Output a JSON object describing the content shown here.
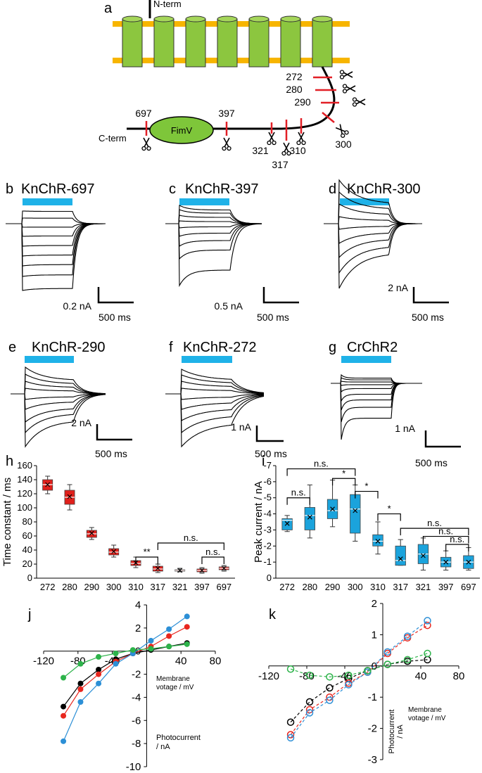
{
  "panel_labels": [
    "a",
    "b",
    "c",
    "d",
    "e",
    "f",
    "g",
    "h",
    "i",
    "j",
    "k"
  ],
  "diagram": {
    "n_term": "N-term",
    "c_term": "C-term",
    "domain": "FimV",
    "sites": [
      "272",
      "280",
      "290",
      "300",
      "310",
      "317",
      "321",
      "397",
      "697"
    ]
  },
  "traces": [
    {
      "title": "KnChR-697",
      "current_scale": "0.2 nA",
      "time_scale": "500 ms"
    },
    {
      "title": "KnChR-397",
      "current_scale": "0.5 nA",
      "time_scale": "500 ms"
    },
    {
      "title": "KnChR-300",
      "current_scale": "2 nA",
      "time_scale": "500 ms"
    },
    {
      "title": "KnChR-290",
      "current_scale": "2 nA",
      "time_scale": "500 ms"
    },
    {
      "title": "KnChR-272",
      "current_scale": "1 nA",
      "time_scale": "500 ms"
    },
    {
      "title": "CrChR2",
      "current_scale": "1 nA",
      "time_scale": "500 ms"
    }
  ],
  "chart_data": [
    {
      "type": "box",
      "ylabel": "Time constant / ms",
      "color": "#e0201b",
      "categories": [
        "272",
        "280",
        "290",
        "300",
        "310",
        "317",
        "321",
        "397",
        "697"
      ],
      "boxes": [
        {
          "min": 120,
          "q1": 125,
          "median": 133,
          "q3": 140,
          "max": 145,
          "mean": 133
        },
        {
          "min": 97,
          "q1": 105,
          "median": 115,
          "q3": 125,
          "max": 133,
          "mean": 116
        },
        {
          "min": 55,
          "q1": 58,
          "median": 63,
          "q3": 68,
          "max": 72,
          "mean": 64
        },
        {
          "min": 30,
          "q1": 33,
          "median": 37,
          "q3": 42,
          "max": 47,
          "mean": 38
        },
        {
          "min": 15,
          "q1": 18,
          "median": 21,
          "q3": 25,
          "max": 30,
          "mean": 22
        },
        {
          "min": 8,
          "q1": 10,
          "median": 13,
          "q3": 17,
          "max": 20,
          "mean": 14
        },
        {
          "min": 9,
          "q1": 10,
          "median": 11,
          "q3": 12,
          "max": 14,
          "mean": 11
        },
        {
          "min": 7,
          "q1": 9,
          "median": 11,
          "q3": 13,
          "max": 15,
          "mean": 11
        },
        {
          "min": 10,
          "q1": 12,
          "median": 14,
          "q3": 16,
          "max": 18,
          "mean": 14
        }
      ],
      "ylim": [
        0,
        160
      ],
      "yticks": [
        0,
        20,
        40,
        60,
        80,
        100,
        120,
        140,
        160
      ],
      "annotations": [
        "**",
        "n.s.",
        "n.s."
      ]
    },
    {
      "type": "box",
      "ylabel": "Peak current / nA",
      "color": "#1ba3dc",
      "categories": [
        "272",
        "280",
        "290",
        "300",
        "310",
        "317",
        "321",
        "397",
        "697"
      ],
      "boxes": [
        {
          "min": -3.9,
          "q1": -3.7,
          "median": -3.6,
          "q3": -3.0,
          "max": -2.9,
          "mean": -3.4
        },
        {
          "min": -5.8,
          "q1": -4.4,
          "median": -3.9,
          "q3": -3.0,
          "max": -2.5,
          "mean": -3.8
        },
        {
          "min": -6.1,
          "q1": -4.9,
          "median": -4.2,
          "q3": -3.7,
          "max": -3.2,
          "mean": -4.3
        },
        {
          "min": -5.8,
          "q1": -5.2,
          "median": -4.3,
          "q3": -2.8,
          "max": -2.3,
          "mean": -4.2
        },
        {
          "min": -3.5,
          "q1": -2.7,
          "median": -2.3,
          "q3": -2.0,
          "max": -1.5,
          "mean": -2.3
        },
        {
          "min": -2.4,
          "q1": -2.0,
          "median": -1.1,
          "q3": -0.8,
          "max": -0.8,
          "mean": -1.2
        },
        {
          "min": -2.5,
          "q1": -2.1,
          "median": -1.5,
          "q3": -0.9,
          "max": -0.5,
          "mean": -1.4
        },
        {
          "min": -1.7,
          "q1": -1.3,
          "median": -1.0,
          "q3": -0.7,
          "max": -0.5,
          "mean": -1.0
        },
        {
          "min": -1.9,
          "q1": -1.4,
          "median": -1.0,
          "q3": -0.6,
          "max": -0.5,
          "mean": -1.0
        }
      ],
      "ylim": [
        0,
        -7
      ],
      "yticks": [
        0,
        -1,
        -2,
        -3,
        -4,
        -5,
        -6,
        -7
      ],
      "annotations": [
        "n.s.",
        "*",
        "n.s.",
        "*",
        "*",
        "n.s.",
        "n.s.",
        "n.s."
      ]
    },
    {
      "type": "line",
      "markers": "filled",
      "dashed": false,
      "xlabel": [
        "Membrane",
        "votage / mV"
      ],
      "ylabel": [
        "Photocurrent",
        "/ nA"
      ],
      "x": [
        -97,
        -77,
        -56,
        -36,
        -16,
        5,
        26,
        47
      ],
      "series": [
        {
          "color": "#000000",
          "values": [
            -4.8,
            -2.8,
            -1.6,
            -0.7,
            -0.2,
            0.1,
            0.4,
            0.7
          ]
        },
        {
          "color": "#e8261e",
          "values": [
            -5.6,
            -3.3,
            -2.0,
            -0.9,
            -0.2,
            0.4,
            1.3,
            2.1
          ]
        },
        {
          "color": "#2c8fd6",
          "values": [
            -7.8,
            -4.4,
            -2.8,
            -1.1,
            -0.2,
            0.9,
            1.9,
            3.0
          ]
        },
        {
          "color": "#2db34a",
          "values": [
            -2.3,
            -1.1,
            -0.5,
            -0.2,
            0.1,
            0.2,
            0.4,
            0.6
          ]
        }
      ],
      "xlim": [
        -120,
        80
      ],
      "xticks": [
        -120,
        -80,
        -40,
        40,
        80
      ],
      "ylim": [
        -10,
        4
      ],
      "yticks": [
        -10,
        -8,
        -6,
        -4,
        -2,
        0,
        2,
        4
      ]
    },
    {
      "type": "line",
      "markers": "open",
      "dashed": true,
      "xlabel": [
        "Membrane",
        "votage / mV"
      ],
      "ylabel": [
        "Photocurrent",
        "/ nA"
      ],
      "x": [
        -97,
        -77,
        -56,
        -36,
        -16,
        5,
        26,
        47
      ],
      "series": [
        {
          "color": "#000000",
          "values": [
            -1.8,
            -1.15,
            -0.7,
            -0.4,
            -0.15,
            0.05,
            0.15,
            0.2
          ]
        },
        {
          "color": "#e8261e",
          "values": [
            -2.2,
            -1.4,
            -1.0,
            -0.55,
            -0.2,
            0.4,
            0.9,
            1.3
          ]
        },
        {
          "color": "#2c8fd6",
          "values": [
            -2.3,
            -1.5,
            -1.1,
            -0.6,
            -0.2,
            0.45,
            0.95,
            1.45
          ]
        },
        {
          "color": "#2db34a",
          "values": [
            -0.1,
            -0.3,
            -0.35,
            -0.3,
            -0.15,
            0.05,
            0.2,
            0.4
          ]
        }
      ],
      "xlim": [
        -120,
        80
      ],
      "xticks": [
        -120,
        -80,
        -40,
        40,
        80
      ],
      "ylim": [
        -3,
        2
      ],
      "yticks": [
        -3,
        -2,
        -1,
        0,
        1,
        2
      ]
    }
  ]
}
